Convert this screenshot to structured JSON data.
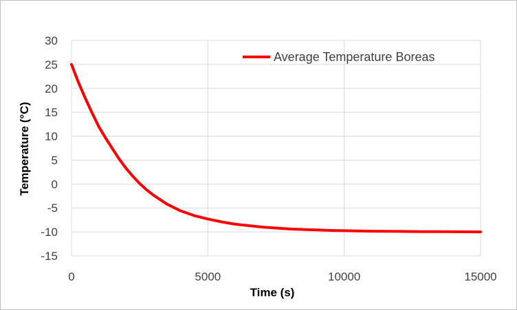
{
  "chart_data": {
    "type": "line",
    "title": "",
    "xlabel": "Time (s)",
    "ylabel": "Temperature (°C)",
    "xlim": [
      0,
      15000
    ],
    "ylim": [
      -15,
      30
    ],
    "xticks": [
      0,
      5000,
      10000,
      15000
    ],
    "yticks": [
      30,
      25,
      20,
      15,
      10,
      5,
      0,
      -5,
      -10,
      -15
    ],
    "grid": "vertical-and-horizontal major gridlines",
    "legend_position": "top-right",
    "series": [
      {
        "name": "Average Temperature Boreas",
        "color": "#ff0000",
        "x": [
          0,
          250,
          500,
          750,
          1000,
          1250,
          1500,
          1750,
          2000,
          2250,
          2500,
          2750,
          3000,
          3500,
          4000,
          4500,
          5000,
          5500,
          6000,
          6500,
          7000,
          7500,
          8000,
          8500,
          9000,
          9500,
          10000,
          10500,
          11000,
          11500,
          12000,
          12500,
          13000,
          13500,
          14000,
          14500,
          15000
        ],
        "y": [
          25,
          21.3,
          18.0,
          14.9,
          12.0,
          9.6,
          7.4,
          5.2,
          3.3,
          1.6,
          0.1,
          -1.2,
          -2.3,
          -4.2,
          -5.6,
          -6.6,
          -7.3,
          -7.9,
          -8.4,
          -8.7,
          -9.0,
          -9.2,
          -9.4,
          -9.5,
          -9.6,
          -9.7,
          -9.75,
          -9.8,
          -9.85,
          -9.88,
          -9.9,
          -9.92,
          -9.95,
          -9.96,
          -9.97,
          -9.98,
          -10.0
        ]
      }
    ]
  }
}
